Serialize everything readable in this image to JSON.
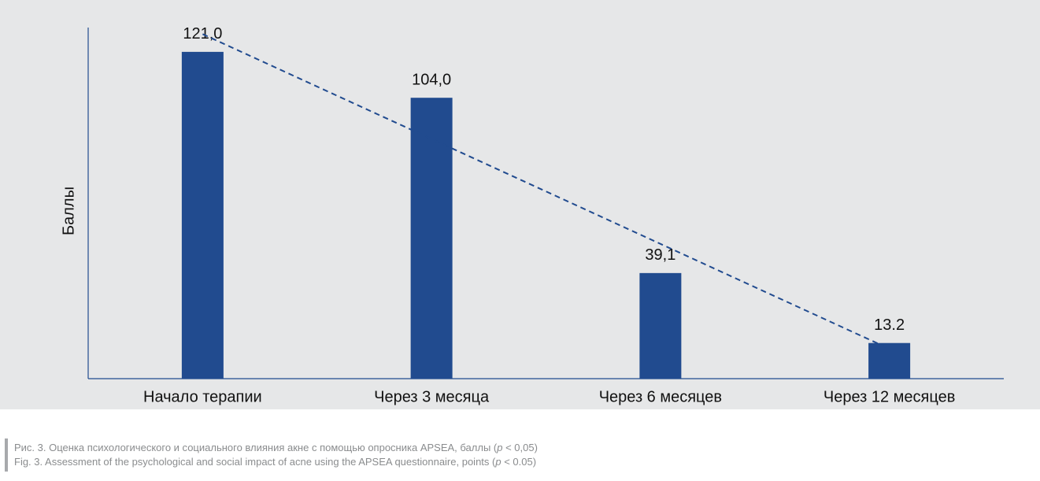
{
  "chart_data": {
    "type": "bar",
    "y_label": "Баллы",
    "categories": [
      "Начало терапии",
      "Через 3 месяца",
      "Через 6 месяцев",
      "Через 12 месяцев"
    ],
    "values": [
      121,
      104,
      39.1,
      13.2
    ],
    "value_labels": [
      "121,0",
      "104,0",
      "39,1",
      "13.2"
    ],
    "color": "#214b8f",
    "ylim": [
      0,
      130
    ],
    "trendline": true,
    "caption": {
      "ru": [
        "Рис. 3. Оценка психологического и социального влияния акне с помощью опросника APSEA, баллы (",
        "p",
        " < 0,05)"
      ],
      "en": [
        "Fig. 3. Assessment of the psychological and social impact of acne using the APSEA questionnaire, points (",
        "p",
        " < 0.05)"
      ]
    }
  }
}
